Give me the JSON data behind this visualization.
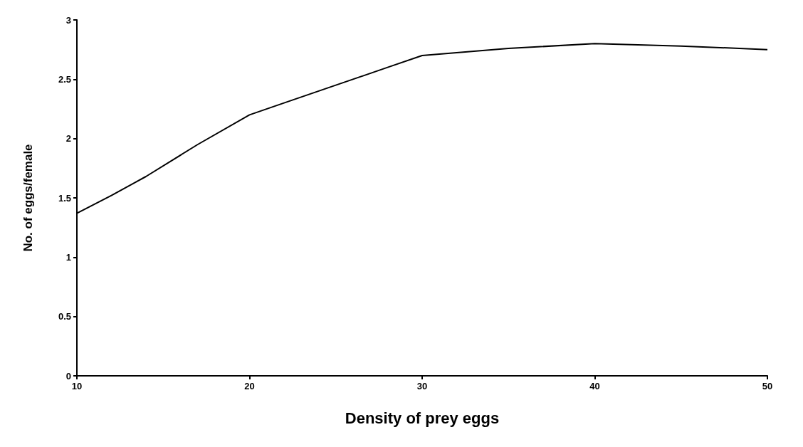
{
  "chart_data": {
    "type": "line",
    "xlabel": "Density of prey eggs",
    "ylabel": "No. of eggs/female",
    "x": [
      10,
      12,
      14,
      17,
      20,
      22,
      25,
      28,
      30,
      35,
      40,
      45,
      50
    ],
    "series": [
      {
        "color": "#000000",
        "values": [
          1.37,
          1.52,
          1.68,
          1.95,
          2.2,
          2.3,
          2.45,
          2.6,
          2.7,
          2.76,
          2.8,
          2.78,
          2.75
        ]
      }
    ],
    "xlim": [
      10,
      50
    ],
    "xticks": [
      10,
      20,
      30,
      40,
      50
    ],
    "ylim": [
      0,
      3
    ],
    "yticks": [
      0,
      0.5,
      1,
      1.5,
      2,
      2.5,
      3
    ],
    "grid": false,
    "marker": "none",
    "line_style": "solid"
  }
}
